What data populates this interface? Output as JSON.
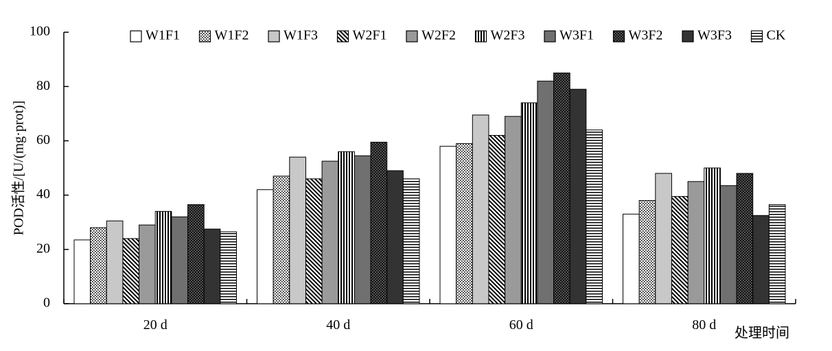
{
  "chart_data": {
    "type": "bar",
    "title": "",
    "xlabel": "处理时间",
    "ylabel": "POD活性/[U/(mg·prot)]",
    "ylim": [
      0,
      100
    ],
    "yticks": [
      0,
      20,
      40,
      60,
      80,
      100
    ],
    "ytick_labels": [
      "0",
      "20",
      "40",
      "60",
      "80",
      "100"
    ],
    "grid": false,
    "legend_position": "top",
    "categories": [
      "20 d",
      "40 d",
      "60 d",
      "80 d"
    ],
    "series": [
      {
        "name": "W1F1",
        "values": [
          23.5,
          42,
          58,
          33
        ],
        "fill": "white"
      },
      {
        "name": "W1F2",
        "values": [
          28,
          47,
          59,
          38
        ],
        "fill": "dots"
      },
      {
        "name": "W1F3",
        "values": [
          30.5,
          54,
          69.5,
          48
        ],
        "fill": "light-gray"
      },
      {
        "name": "W2F1",
        "values": [
          24,
          46,
          62,
          39.5
        ],
        "fill": "diagonal"
      },
      {
        "name": "W2F2",
        "values": [
          29,
          52.5,
          69,
          45
        ],
        "fill": "gray"
      },
      {
        "name": "W2F3",
        "values": [
          34,
          56,
          74,
          50
        ],
        "fill": "vertical"
      },
      {
        "name": "W3F1",
        "values": [
          32,
          54.5,
          82,
          43.5
        ],
        "fill": "dark-gray"
      },
      {
        "name": "W3F2",
        "values": [
          36.5,
          59.5,
          85,
          48
        ],
        "fill": "checker"
      },
      {
        "name": "W3F3",
        "values": [
          27.5,
          49,
          79,
          32.5
        ],
        "fill": "black"
      },
      {
        "name": "CK",
        "values": [
          26.5,
          46,
          64,
          36.5
        ],
        "fill": "horizontal"
      }
    ],
    "colors": {
      "light_gray": "#c8c8c8",
      "gray": "#9a9a9a",
      "dark_gray": "#707070",
      "near_black": "#333333"
    }
  }
}
